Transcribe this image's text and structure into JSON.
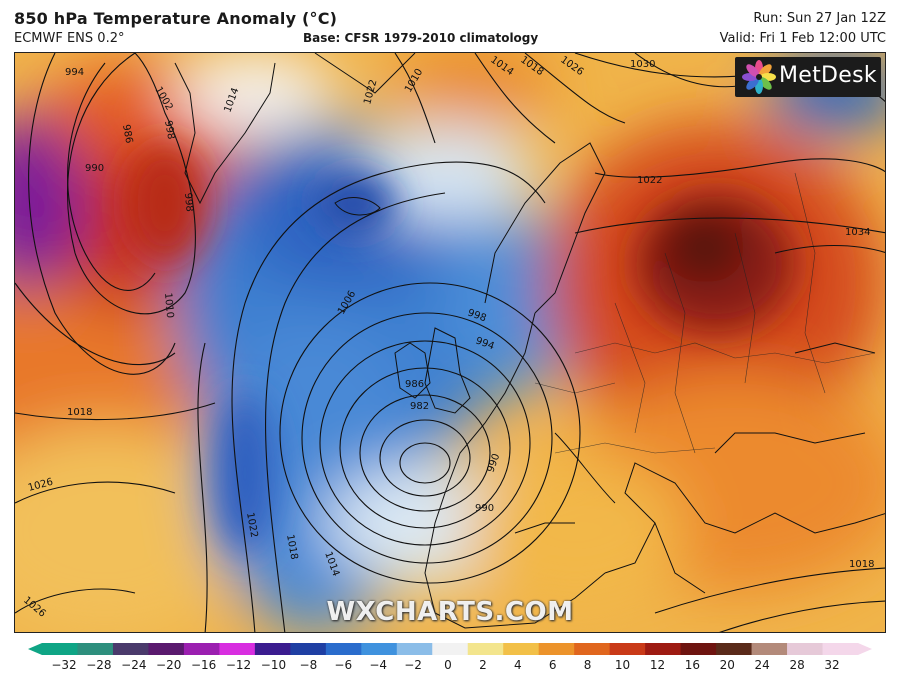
{
  "header": {
    "title": "850 hPa Temperature Anomaly (°C)",
    "model": "ECMWF ENS 0.2°",
    "base": "Base: CFSR 1979-2010 climatology",
    "run": "Run: Sun 27 Jan 12Z",
    "valid": "Valid: Fri 1 Feb 12:00 UTC"
  },
  "logo": {
    "text": "MetDesk",
    "icon": "flower-logo-icon"
  },
  "watermark": "WXCHARTS.COM",
  "map": {
    "variable": "850 hPa temperature anomaly",
    "units": "°C",
    "isobar_labels": [
      "994",
      "1002",
      "998",
      "986",
      "990",
      "998",
      "1014",
      "1022",
      "1026",
      "1018",
      "1014",
      "1010",
      "1030",
      "1022",
      "1034",
      "1010",
      "1006",
      "998",
      "994",
      "986",
      "982",
      "990",
      "990",
      "1018",
      "1026",
      "1022",
      "1018",
      "1014",
      "1026",
      "1018"
    ]
  },
  "colorbar": {
    "ticks": [
      "−32",
      "−28",
      "−24",
      "−20",
      "−16",
      "−12",
      "−10",
      "−8",
      "−6",
      "−4",
      "−2",
      "0",
      "2",
      "4",
      "6",
      "8",
      "10",
      "12",
      "16",
      "20",
      "24",
      "28",
      "32"
    ],
    "colors": [
      "#0fa585",
      "#2e8f7d",
      "#4a3a6b",
      "#5a1a6e",
      "#9b1fb0",
      "#d82ee0",
      "#3b1c8f",
      "#1f3fa3",
      "#2a6ccc",
      "#3f92de",
      "#8bbde8",
      "#f2f2f2",
      "#f3e58d",
      "#f2c048",
      "#ec932b",
      "#e0661e",
      "#c93a18",
      "#9e1b12",
      "#6e1410",
      "#5a2a1a",
      "#b38a7a",
      "#e6c9d8",
      "#f4d7ea"
    ]
  }
}
